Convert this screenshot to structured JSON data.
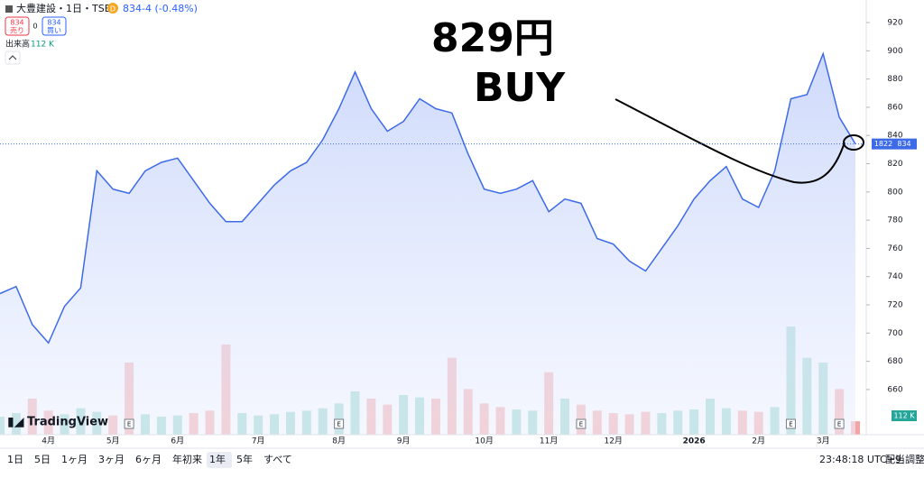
{
  "header": {
    "symbol": "大豊建設・1日・TSE",
    "badge": "D",
    "price": "834",
    "change": "-4 (-0.48%)",
    "sell_price": "834",
    "sell_label": "売り",
    "spread": "0",
    "buy_price": "834",
    "buy_label": "買い",
    "volume_label": "出来高",
    "volume_value": "112 K"
  },
  "annotations": [
    "829円",
    "BUY"
  ],
  "chart_data": {
    "type": "line",
    "categories": [
      null,
      null,
      null,
      "4月",
      null,
      null,
      null,
      "5月",
      null,
      null,
      null,
      "6月",
      null,
      null,
      null,
      null,
      "7月",
      null,
      null,
      null,
      null,
      "8月",
      null,
      null,
      null,
      "9月",
      null,
      null,
      null,
      null,
      "10月",
      null,
      null,
      null,
      "11月",
      null,
      null,
      null,
      "12月",
      null,
      null,
      null,
      null,
      "2026",
      null,
      null,
      null,
      "2月",
      null,
      null,
      null,
      "3月",
      null,
      null
    ],
    "series": [
      {
        "name": "大豊建設",
        "color": "#3d6ae8",
        "values": [
          728,
          733,
          706,
          693,
          719,
          732,
          815,
          802,
          799,
          815,
          821,
          824,
          808,
          792,
          779,
          779,
          792,
          805,
          815,
          821,
          837,
          859,
          885,
          859,
          843,
          850,
          866,
          859,
          856,
          827,
          802,
          799,
          802,
          808,
          786,
          795,
          792,
          767,
          763,
          751,
          744,
          760,
          776,
          795,
          808,
          818,
          795,
          789,
          815,
          866,
          869,
          898,
          853,
          834
        ]
      },
      {
        "name": "出来高",
        "up_color": "#8fd3c9",
        "down_color": "#f5a3a3",
        "values": [
          150,
          180,
          300,
          200,
          170,
          220,
          190,
          160,
          600,
          170,
          150,
          160,
          180,
          200,
          750,
          180,
          160,
          170,
          190,
          200,
          220,
          260,
          360,
          300,
          250,
          330,
          310,
          300,
          640,
          380,
          260,
          230,
          210,
          200,
          520,
          300,
          250,
          200,
          180,
          170,
          190,
          180,
          200,
          210,
          300,
          220,
          200,
          190,
          230,
          900,
          640,
          600,
          380,
          112
        ]
      }
    ],
    "ylim": [
      628,
      936
    ],
    "yticks": [
      660,
      680,
      700,
      720,
      740,
      760,
      780,
      800,
      820,
      840,
      860,
      880,
      900,
      920
    ],
    "last_price": 834,
    "countdown": "1822",
    "last_volume": "112 K"
  },
  "events": [
    "E",
    "E",
    "E",
    "E",
    "E"
  ],
  "logo": "TradingView",
  "toolbar": {
    "ranges": [
      "1日",
      "5日",
      "1ヶ月",
      "3ヶ月",
      "6ヶ月",
      "年初来",
      "1年",
      "5年",
      "すべて"
    ],
    "time": "23:48:18 UTC+9",
    "adjust": "配当調整"
  }
}
